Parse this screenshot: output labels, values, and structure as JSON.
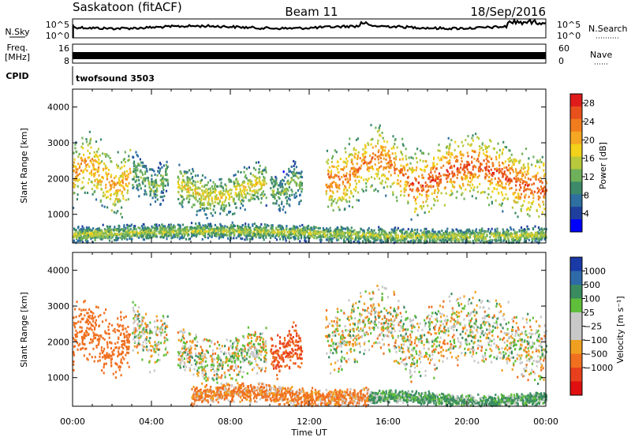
{
  "header": {
    "station": "Saskatoon (fitACF)",
    "beam": "Beam 11",
    "date": "18/Sep/2016"
  },
  "top_panels": {
    "nsky_label": "N.Sky",
    "nsky_ticks": [
      "10^5",
      "10^0"
    ],
    "nsearch_label": "N.Search",
    "freq_label_1": "Freq.",
    "freq_label_2": "[MHz]",
    "freq_ticks": [
      "16",
      "8"
    ],
    "nave_label": "Nave",
    "nave_ticks": [
      "60",
      "0"
    ],
    "cpid_label": "CPID",
    "cpid_value": "twofsound 3503"
  },
  "colors": {
    "power_scale": [
      "#0000ff",
      "#1e3f9e",
      "#2e6fa0",
      "#3c8a6a",
      "#6fb15a",
      "#b9c93c",
      "#f2d21a",
      "#f5a623",
      "#f07c1e",
      "#e8501c",
      "#e01b1b"
    ],
    "velocity_scale": [
      "#1a3aa8",
      "#2f6aa8",
      "#3a8c60",
      "#5fbf3a",
      "#c8c8c8",
      "#c8c8c8",
      "#f0a020",
      "#f07020",
      "#e8401c",
      "#e01010"
    ]
  },
  "chart_data": [
    {
      "type": "heatmap",
      "name": "power",
      "xlabel": "Time UT",
      "ylabel": "Slant Range [km]",
      "x_ticks": [
        "00:00",
        "04:00",
        "08:00",
        "12:00",
        "16:00",
        "20:00",
        "00:00"
      ],
      "y_ticks": [
        "1000",
        "2000",
        "3000",
        "4000"
      ],
      "ylim": [
        200,
        4500
      ],
      "xlim_hours": [
        0,
        24
      ],
      "colorbar_label": "Power [dB]",
      "colorbar_ticks": [
        "4",
        "8",
        "12",
        "16",
        "20",
        "24",
        "28"
      ],
      "colorbar_range": [
        0,
        30
      ],
      "regions": [
        {
          "t0": 0.0,
          "t1": 2.9,
          "r0": 1100,
          "r1": 3100,
          "peak": 20
        },
        {
          "t0": 3.0,
          "t1": 4.8,
          "r0": 1300,
          "r1": 2600,
          "peak": 12
        },
        {
          "t0": 5.3,
          "t1": 9.8,
          "r0": 1000,
          "r1": 2300,
          "peak": 16
        },
        {
          "t0": 10.0,
          "t1": 11.6,
          "r0": 1100,
          "r1": 2400,
          "peak": 12
        },
        {
          "t0": 12.8,
          "t1": 17.0,
          "r0": 1200,
          "r1": 3300,
          "peak": 22
        },
        {
          "t0": 17.0,
          "t1": 24.0,
          "r0": 1000,
          "r1": 3100,
          "peak": 24
        },
        {
          "t0": 0.0,
          "t1": 24.0,
          "r0": 200,
          "r1": 700,
          "peak": 14
        }
      ]
    },
    {
      "type": "heatmap",
      "name": "velocity",
      "xlabel": "Time UT",
      "ylabel": "Slant Range [km]",
      "x_ticks": [
        "00:00",
        "04:00",
        "08:00",
        "12:00",
        "16:00",
        "20:00",
        "00:00"
      ],
      "y_ticks": [
        "1000",
        "2000",
        "3000",
        "4000"
      ],
      "ylim": [
        200,
        4500
      ],
      "xlim_hours": [
        0,
        24
      ],
      "colorbar_label": "Velocity [m s⁻¹]",
      "colorbar_ticks": [
        "1000",
        "500",
        "100",
        "25",
        "−25",
        "−100",
        "−500",
        "−1000"
      ],
      "regions": [
        {
          "t0": 0.0,
          "t1": 2.9,
          "r0": 1100,
          "r1": 3100,
          "vel": -200
        },
        {
          "t0": 3.0,
          "t1": 4.8,
          "r0": 1300,
          "r1": 3000,
          "vel": 0
        },
        {
          "t0": 5.3,
          "t1": 9.8,
          "r0": 900,
          "r1": 2300,
          "vel": 0
        },
        {
          "t0": 10.0,
          "t1": 11.6,
          "r0": 1100,
          "r1": 2400,
          "vel": -300
        },
        {
          "t0": 12.8,
          "t1": 17.0,
          "r0": 1300,
          "r1": 3400,
          "vel": 0
        },
        {
          "t0": 17.0,
          "t1": 24.0,
          "r0": 1000,
          "r1": 3200,
          "vel": 0
        },
        {
          "t0": 6.0,
          "t1": 15.0,
          "r0": 200,
          "r1": 800,
          "vel": -80
        },
        {
          "t0": 15.0,
          "t1": 24.0,
          "r0": 200,
          "r1": 600,
          "vel": 80
        }
      ]
    }
  ]
}
